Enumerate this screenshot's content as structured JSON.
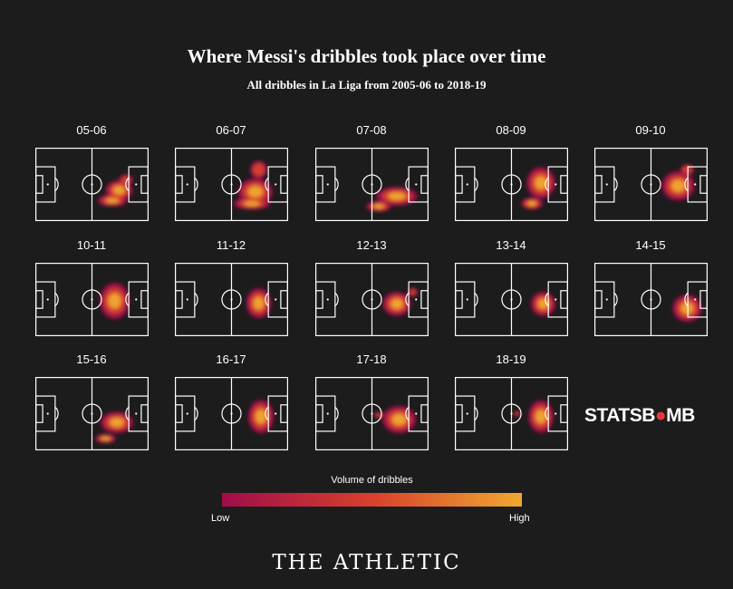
{
  "chart_data": {
    "type": "heatmap",
    "title": "Where Messi's dribbles took place over time",
    "subtitle": "All dribbles in La Liga from 2005-06 to 2018-19",
    "attack_direction": "left-to-right",
    "value_scale": "relative dribble density (0 = none, 1 = highest)",
    "legend": {
      "title": "Volume of dribbles",
      "low": "Low",
      "high": "High",
      "colors": [
        "#a00d4a",
        "#d8402d",
        "#f0a830"
      ]
    },
    "panels": [
      {
        "season": "05-06",
        "zones": [
          {
            "x": 74,
            "y": 58,
            "rx": 14,
            "ry": 16,
            "level": 0.7
          },
          {
            "x": 68,
            "y": 72,
            "rx": 16,
            "ry": 10,
            "level": 0.6
          },
          {
            "x": 80,
            "y": 44,
            "rx": 8,
            "ry": 10,
            "level": 0.45
          }
        ]
      },
      {
        "season": "06-07",
        "zones": [
          {
            "x": 71,
            "y": 60,
            "rx": 17,
            "ry": 20,
            "level": 0.8
          },
          {
            "x": 74,
            "y": 30,
            "rx": 10,
            "ry": 16,
            "level": 0.45
          },
          {
            "x": 68,
            "y": 76,
            "rx": 20,
            "ry": 10,
            "level": 0.6
          }
        ]
      },
      {
        "season": "07-08",
        "zones": [
          {
            "x": 72,
            "y": 66,
            "rx": 20,
            "ry": 14,
            "level": 0.8
          },
          {
            "x": 56,
            "y": 80,
            "rx": 14,
            "ry": 9,
            "level": 0.55
          }
        ]
      },
      {
        "season": "08-09",
        "zones": [
          {
            "x": 76,
            "y": 48,
            "rx": 14,
            "ry": 24,
            "level": 0.8
          },
          {
            "x": 68,
            "y": 76,
            "rx": 12,
            "ry": 10,
            "level": 0.55
          }
        ]
      },
      {
        "season": "09-10",
        "zones": [
          {
            "x": 74,
            "y": 52,
            "rx": 16,
            "ry": 22,
            "level": 0.8
          },
          {
            "x": 82,
            "y": 30,
            "rx": 8,
            "ry": 10,
            "level": 0.45
          }
        ]
      },
      {
        "season": "10-11",
        "zones": [
          {
            "x": 70,
            "y": 52,
            "rx": 14,
            "ry": 26,
            "level": 0.9
          }
        ]
      },
      {
        "season": "11-12",
        "zones": [
          {
            "x": 74,
            "y": 55,
            "rx": 12,
            "ry": 22,
            "level": 0.85
          }
        ]
      },
      {
        "season": "12-13",
        "zones": [
          {
            "x": 72,
            "y": 56,
            "rx": 14,
            "ry": 18,
            "level": 0.8
          },
          {
            "x": 86,
            "y": 40,
            "rx": 6,
            "ry": 8,
            "level": 0.4
          }
        ]
      },
      {
        "season": "13-14",
        "zones": [
          {
            "x": 78,
            "y": 56,
            "rx": 12,
            "ry": 18,
            "level": 0.8
          }
        ]
      },
      {
        "season": "14-15",
        "zones": [
          {
            "x": 82,
            "y": 62,
            "rx": 14,
            "ry": 20,
            "level": 0.85
          }
        ]
      },
      {
        "season": "15-16",
        "zones": [
          {
            "x": 72,
            "y": 62,
            "rx": 16,
            "ry": 16,
            "level": 0.8
          },
          {
            "x": 62,
            "y": 84,
            "rx": 12,
            "ry": 8,
            "level": 0.5
          }
        ]
      },
      {
        "season": "16-17",
        "zones": [
          {
            "x": 76,
            "y": 54,
            "rx": 12,
            "ry": 24,
            "level": 0.9
          }
        ]
      },
      {
        "season": "17-18",
        "zones": [
          {
            "x": 74,
            "y": 58,
            "rx": 16,
            "ry": 20,
            "level": 0.85
          },
          {
            "x": 56,
            "y": 52,
            "rx": 6,
            "ry": 6,
            "level": 0.35
          }
        ]
      },
      {
        "season": "18-19",
        "zones": [
          {
            "x": 76,
            "y": 54,
            "rx": 12,
            "ry": 24,
            "level": 0.85
          },
          {
            "x": 55,
            "y": 50,
            "rx": 5,
            "ry": 5,
            "level": 0.3
          }
        ]
      }
    ]
  },
  "logos": {
    "statsbomb_prefix": "STATSB",
    "statsbomb_suffix": "MB",
    "athletic": "THE ATHLETIC"
  }
}
